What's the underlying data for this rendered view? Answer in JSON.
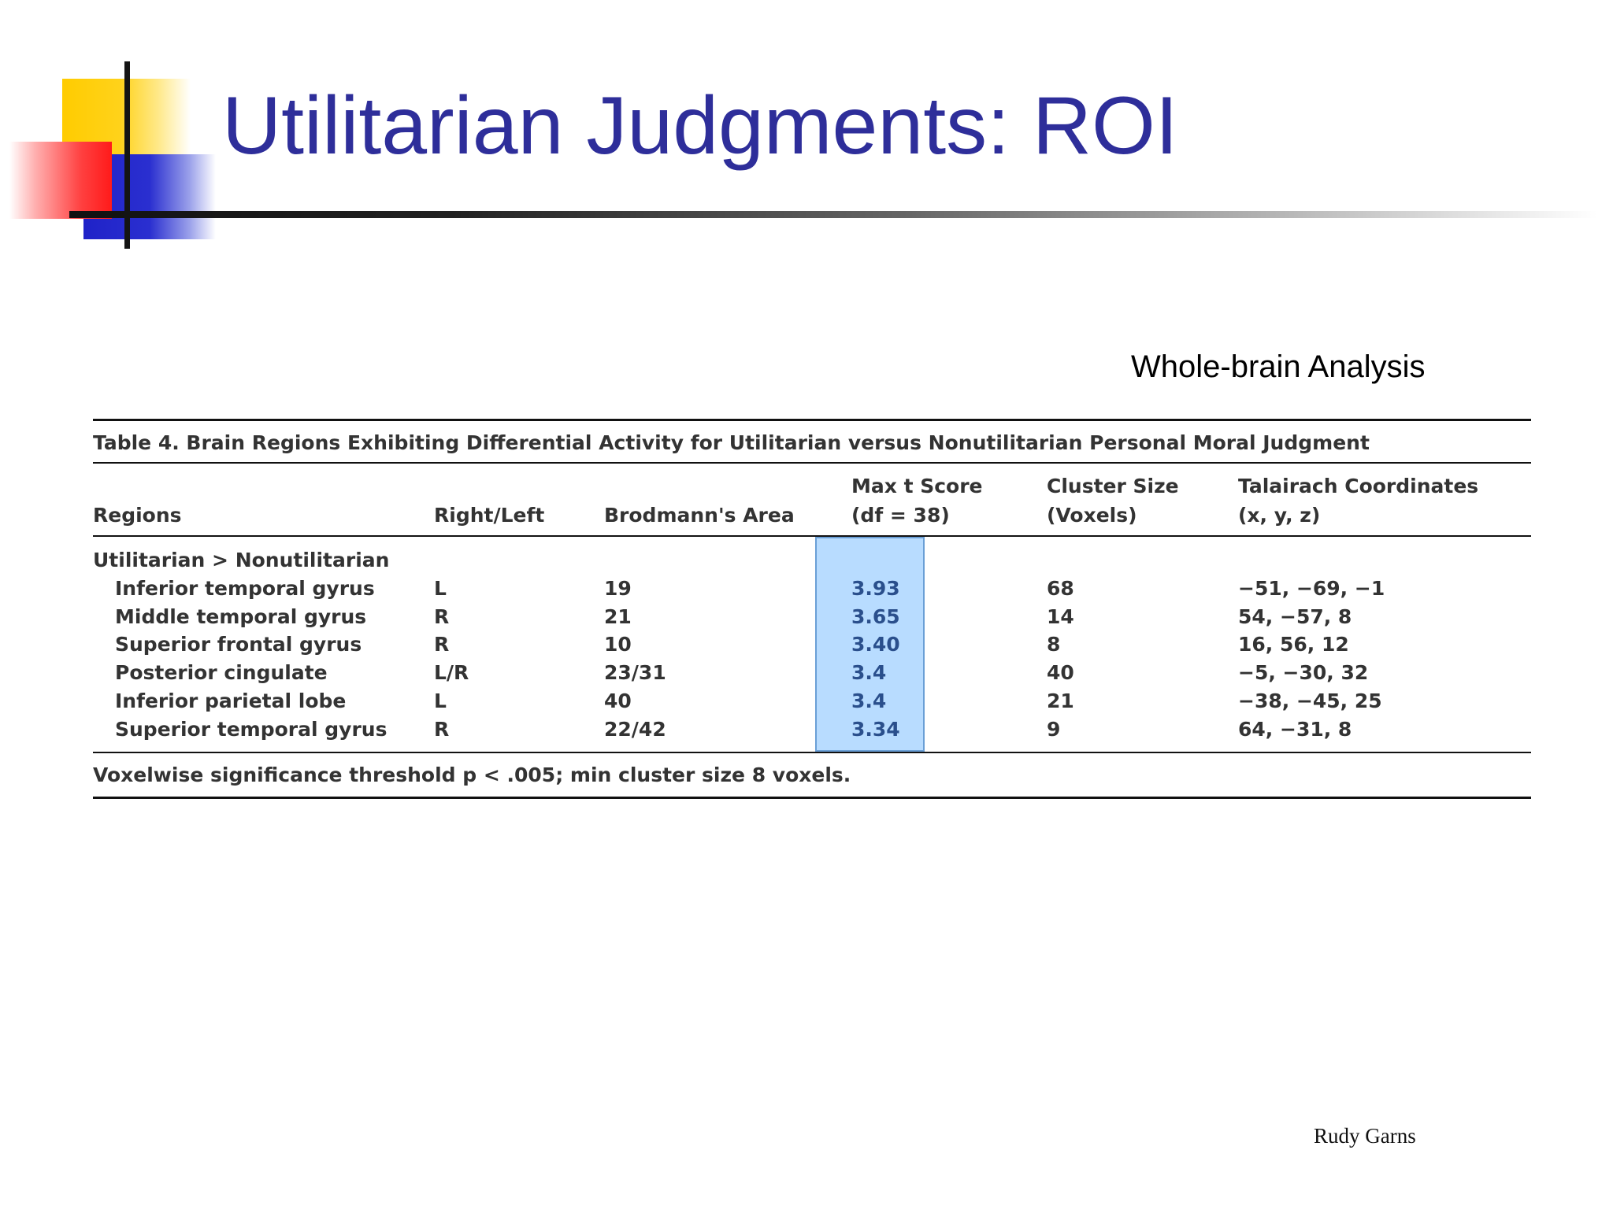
{
  "slide": {
    "title": "Utilitarian Judgments: ROI",
    "subtitle": "Whole-brain Analysis",
    "author": "Rudy Garns"
  },
  "table": {
    "caption": "Table 4.  Brain Regions Exhibiting Differential Activity for Utilitarian versus Nonutilitarian Personal Moral Judgment",
    "headers": {
      "regions": "Regions",
      "side": "Right/Left",
      "brodmann": "Brodmann's Area",
      "tscore_1": "Max t Score",
      "tscore_2": "(df = 38)",
      "cluster_1": "Cluster Size",
      "cluster_2": "(Voxels)",
      "talairach_1": "Talairach Coordinates",
      "talairach_2": "(x, y, z)"
    },
    "group_label": "Utilitarian > Nonutilitarian",
    "rows": [
      {
        "region": "Inferior temporal gyrus",
        "side": "L",
        "brodmann": "19",
        "tscore": "3.93",
        "cluster": "68",
        "coords": "−51, −69, −1"
      },
      {
        "region": "Middle temporal gyrus",
        "side": "R",
        "brodmann": "21",
        "tscore": "3.65",
        "cluster": "14",
        "coords": "54, −57, 8"
      },
      {
        "region": "Superior frontal gyrus",
        "side": "R",
        "brodmann": "10",
        "tscore": "3.40",
        "cluster": "8",
        "coords": "16, 56, 12"
      },
      {
        "region": "Posterior cingulate",
        "side": "L/R",
        "brodmann": "23/31",
        "tscore": "3.4",
        "cluster": "40",
        "coords": "−5, −30, 32"
      },
      {
        "region": "Inferior parietal lobe",
        "side": "L",
        "brodmann": "40",
        "tscore": "3.4",
        "cluster": "21",
        "coords": "−38, −45, 25"
      },
      {
        "region": "Superior temporal gyrus",
        "side": "R",
        "brodmann": "22/42",
        "tscore": "3.34",
        "cluster": "9",
        "coords": "64, −31, 8"
      }
    ],
    "footnote": "Voxelwise significance threshold p < .005; min cluster size 8 voxels."
  },
  "colors": {
    "title": "#2e2e9a",
    "highlight": "#b8dcff"
  }
}
